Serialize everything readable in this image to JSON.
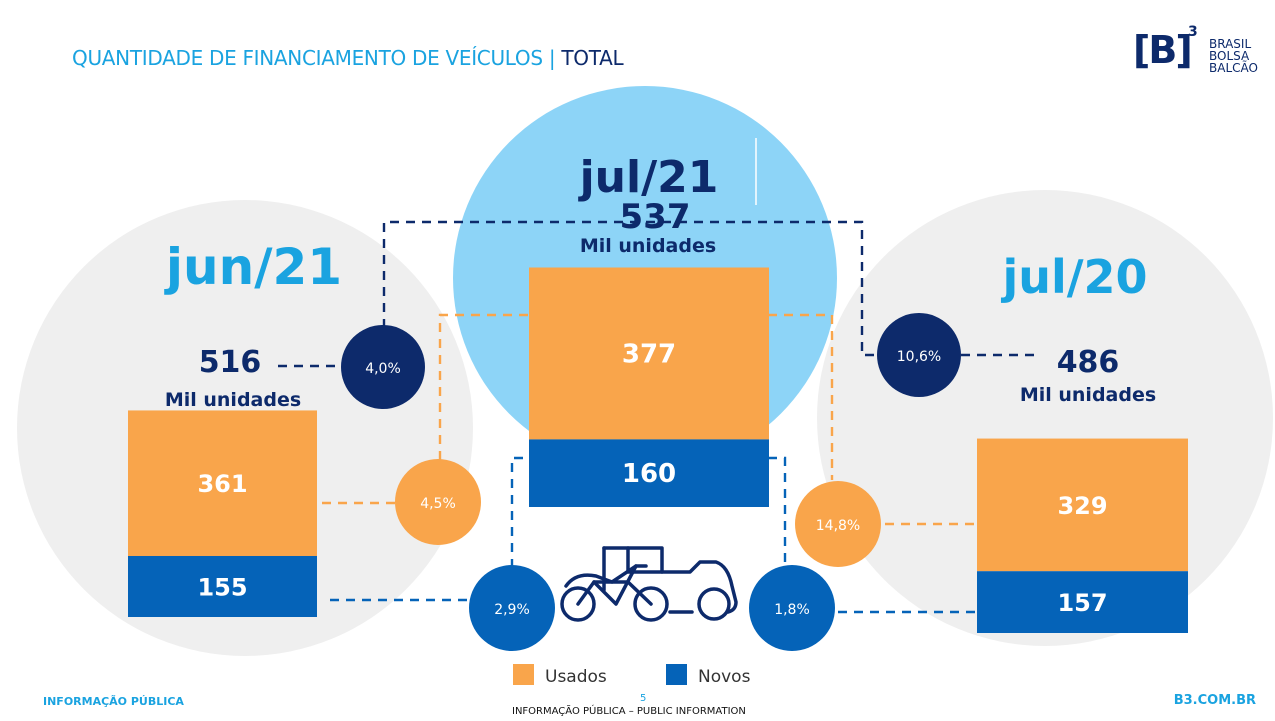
{
  "title": {
    "main": "QUANTIDADE DE FINANCIAMENTO DE VEÍCULOS",
    "separator": "|",
    "suffix": "TOTAL"
  },
  "logo": {
    "mark": "[B]",
    "superscript": "3",
    "line1": "BRASIL",
    "line2": "BOLSA",
    "line3": "BALCÃO"
  },
  "footer": {
    "left": "INFORMAÇÃO PÚBLICA",
    "right": "B3.COM.BR",
    "page": "5",
    "center": "INFORMAÇÃO PÚBLICA – PUBLIC INFORMATION"
  },
  "colors": {
    "usados": "#f9a54b",
    "novos": "#0563b8",
    "navy": "#0d2a6b",
    "cyan": "#1aa3e0",
    "lightblue": "#8dd4f7",
    "grey": "#efefef"
  },
  "chart_data": {
    "type": "bar",
    "stacked": true,
    "title": "QUANTIDADE DE FINANCIAMENTO DE VEÍCULOS | TOTAL",
    "unit_label": "Mil unidades",
    "categories": [
      "jun/21",
      "jul/21",
      "jul/20"
    ],
    "totals": [
      516,
      537,
      486
    ],
    "series": [
      {
        "name": "Usados",
        "values": [
          361,
          377,
          329
        ]
      },
      {
        "name": "Novos",
        "values": [
          155,
          160,
          157
        ]
      }
    ],
    "variations": {
      "total_vs_jun21": "4,0%",
      "total_vs_jul20": "10,6%",
      "usados_vs_jun21": "4,5%",
      "usados_vs_jul20": "14,8%",
      "novos_vs_jun21": "2,9%",
      "novos_vs_jul20": "1,8%"
    },
    "legend": [
      "Usados",
      "Novos"
    ],
    "legend_position": "bottom"
  }
}
